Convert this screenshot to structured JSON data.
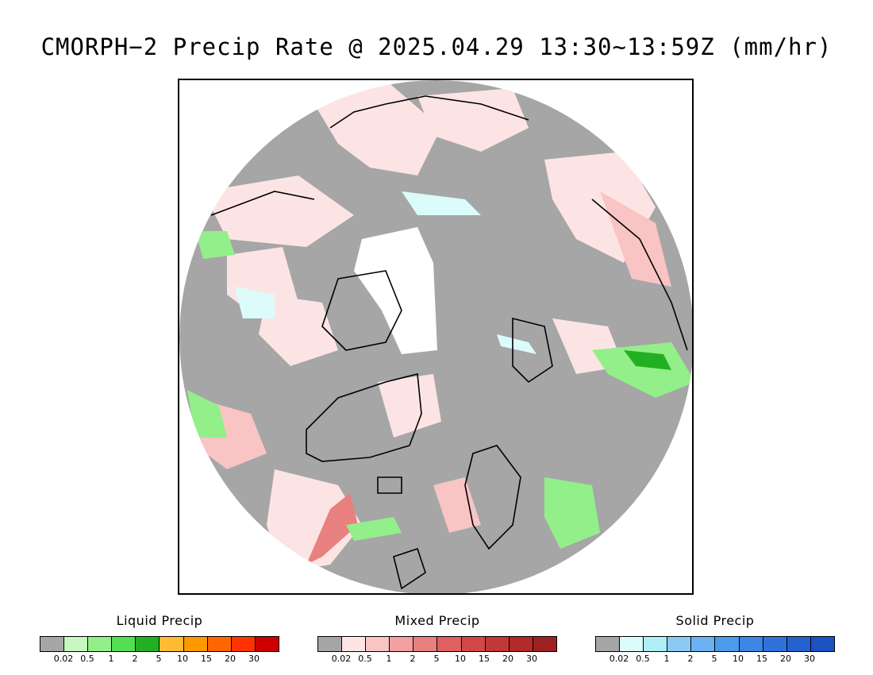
{
  "title": "CMORPH−2 Precip Rate @ 2025.04.29 13:30~13:59Z (mm/hr)",
  "legends": [
    {
      "title": "Liquid Precip",
      "ticks": [
        "0.02",
        "0.5",
        "1",
        "2",
        "5",
        "10",
        "15",
        "20",
        "30"
      ],
      "colors": [
        "#a6a6a6",
        "#c6f8c0",
        "#93ef8a",
        "#52e052",
        "#22b022",
        "#ffbb33",
        "#ff9900",
        "#ff6600",
        "#ff3300",
        "#cc0000"
      ]
    },
    {
      "title": "Mixed Precip",
      "ticks": [
        "0.02",
        "0.5",
        "1",
        "2",
        "5",
        "10",
        "15",
        "20",
        "30"
      ],
      "colors": [
        "#a6a6a6",
        "#fde4e4",
        "#f8c4c4",
        "#f2a0a0",
        "#e88080",
        "#df6060",
        "#d24848",
        "#c23838",
        "#b22a2a",
        "#9e2222"
      ]
    },
    {
      "title": "Solid Precip",
      "ticks": [
        "0.02",
        "0.5",
        "1",
        "2",
        "5",
        "10",
        "15",
        "20",
        "30"
      ],
      "colors": [
        "#a6a6a6",
        "#dcfcfc",
        "#aeeef6",
        "#8ccaf6",
        "#6cb2f2",
        "#4c9cee",
        "#3c86e6",
        "#2e72dc",
        "#2462d0",
        "#1b52c4"
      ]
    }
  ],
  "map": {
    "background_color": "#a6a6a6",
    "no_data_color": "#ffffff",
    "coast_color": "#000000"
  }
}
